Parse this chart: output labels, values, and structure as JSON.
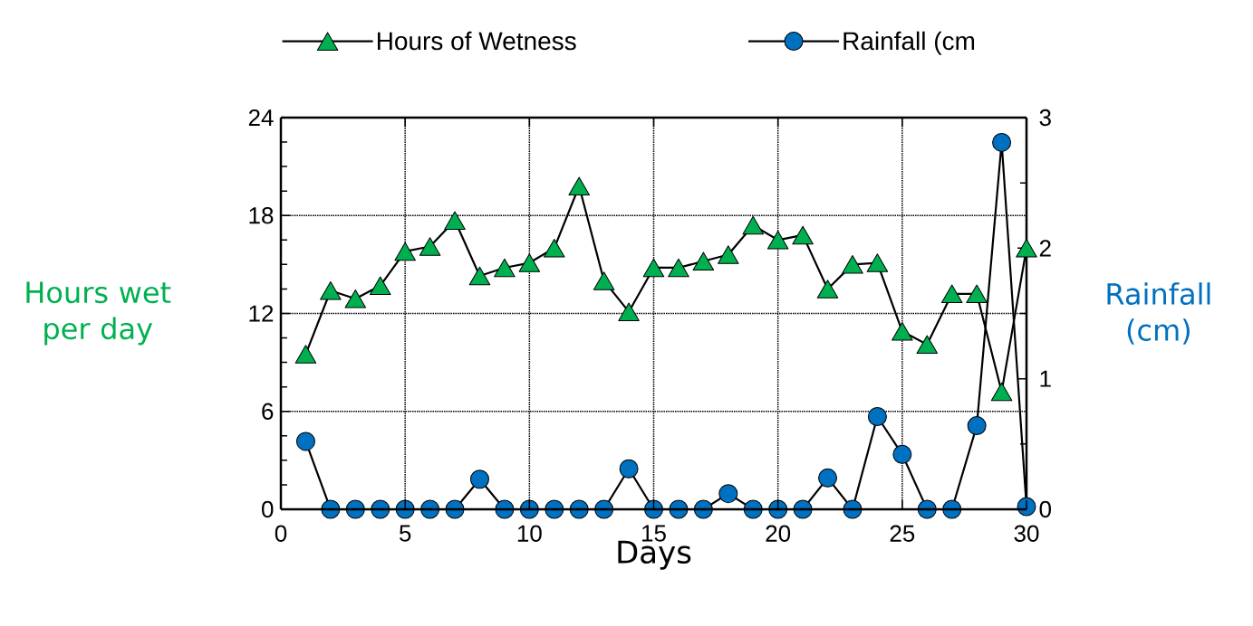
{
  "chart_data": {
    "type": "line",
    "xlabel": "Days",
    "ylabel": "Hours wet per day",
    "y2label": "Rainfall (cm)",
    "x": [
      1,
      2,
      3,
      4,
      5,
      6,
      7,
      8,
      9,
      10,
      11,
      12,
      13,
      14,
      15,
      16,
      17,
      18,
      19,
      20,
      21,
      22,
      23,
      24,
      25,
      26,
      27,
      28,
      29,
      30
    ],
    "series": [
      {
        "name": "Hours of Wetness",
        "color": "#00b050",
        "marker": "triangle",
        "values": [
          9.5,
          13.4,
          12.9,
          13.7,
          15.8,
          16.1,
          17.7,
          14.3,
          14.8,
          15.1,
          16.0,
          19.8,
          14.0,
          12.1,
          14.8,
          14.8,
          15.2,
          15.6,
          17.4,
          16.5,
          16.8,
          13.5,
          15.0,
          15.1,
          10.9,
          10.1,
          13.2,
          13.2,
          7.2,
          16.0
        ]
      },
      {
        "name": "Rainfall (cm",
        "color": "#0070c0",
        "marker": "circle",
        "axis": "y2",
        "values": [
          0.52,
          0,
          0,
          0,
          0,
          0,
          0,
          0.23,
          0,
          0,
          0,
          0,
          0,
          0.31,
          0,
          0,
          0,
          0.12,
          0,
          0,
          0,
          0.24,
          0,
          0.71,
          0.42,
          0,
          0,
          0.64,
          2.81,
          0.02
        ]
      }
    ],
    "xlim": [
      0,
      30
    ],
    "xticks": [
      0,
      5,
      10,
      15,
      20,
      25,
      30
    ],
    "ylim": [
      0,
      24
    ],
    "yticks": [
      0,
      6,
      12,
      18,
      24
    ],
    "y2lim": [
      0,
      3
    ],
    "y2ticks": [
      0,
      1,
      2,
      3
    ],
    "grid": true,
    "legend": "top"
  }
}
